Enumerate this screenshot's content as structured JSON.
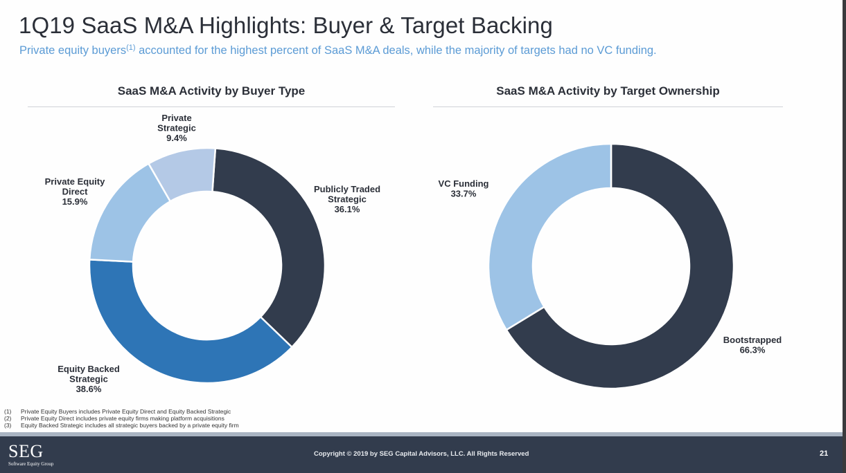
{
  "header": {
    "title": "1Q19 SaaS M&A Highlights: Buyer & Target Backing",
    "subtitle_before": "Private equity buyers",
    "subtitle_sup": "(1)",
    "subtitle_after": " accounted for the highest percent of SaaS M&A deals, while the majority of targets had no VC funding."
  },
  "colors": {
    "dark_navy": "#323c4d",
    "medium_blue": "#2e75b6",
    "light_blue": "#9dc3e6",
    "pale_blue": "#b4c9e6",
    "subtitle_blue": "#5b9bd5"
  },
  "chart_data": [
    {
      "type": "pie",
      "variant": "donut",
      "title": "SaaS M&A Activity by Buyer Type",
      "unit": "%",
      "slices": [
        {
          "label_lines": [
            "Publicly Traded",
            "Strategic"
          ],
          "value": 36.1,
          "value_label": "36.1%",
          "color": "#323c4d"
        },
        {
          "label_lines": [
            "Equity Backed",
            "Strategic"
          ],
          "value": 38.6,
          "value_label": "38.6%",
          "color": "#2e75b6"
        },
        {
          "label_lines": [
            "Private Equity",
            "Direct"
          ],
          "value": 15.9,
          "value_label": "15.9%",
          "color": "#9dc3e6"
        },
        {
          "label_lines": [
            "Private",
            "Strategic"
          ],
          "value": 9.4,
          "value_label": "9.4%",
          "color": "#b4c9e6"
        }
      ]
    },
    {
      "type": "pie",
      "variant": "donut",
      "title": "SaaS M&A Activity by Target Ownership",
      "unit": "%",
      "slices": [
        {
          "label_lines": [
            "Bootstrapped"
          ],
          "value": 66.3,
          "value_label": "66.3%",
          "color": "#323c4d"
        },
        {
          "label_lines": [
            "VC Funding"
          ],
          "value": 33.7,
          "value_label": "33.7%",
          "color": "#9dc3e6"
        }
      ]
    }
  ],
  "footnotes": [
    {
      "num": "(1)",
      "text": "Private Equity Buyers includes Private Equity Direct and Equity Backed Strategic"
    },
    {
      "num": "(2)",
      "text": "Private Equity Direct includes private equity firms making platform acquisitions"
    },
    {
      "num": "(3)",
      "text": "Equity Backed Strategic includes all strategic buyers backed by a private equity firm"
    }
  ],
  "footer": {
    "logo_main": "SEG",
    "logo_sub": "Software Equity Group",
    "copyright": "Copyright © 2019 by SEG Capital Advisors, LLC. All Rights Reserved",
    "page_number": "21"
  }
}
